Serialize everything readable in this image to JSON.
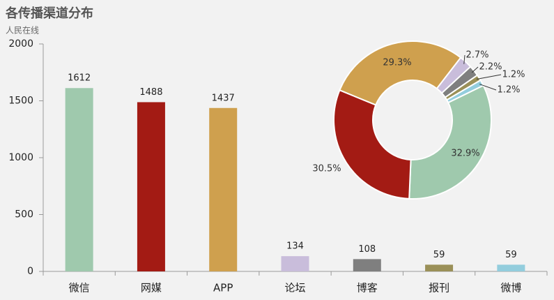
{
  "title": "各传播渠道分布",
  "subtitle": "人民在线",
  "chart_data": [
    {
      "type": "bar",
      "categories": [
        "微信",
        "网媒",
        "APP",
        "论坛",
        "博客",
        "报刊",
        "微博"
      ],
      "values": [
        1612,
        1488,
        1437,
        134,
        108,
        59,
        59
      ],
      "colors": [
        "#9fc9ad",
        "#a31b14",
        "#cfa04e",
        "#c9bddb",
        "#7f7f7f",
        "#9a9058",
        "#93cddd"
      ],
      "ylim": [
        0,
        2000
      ],
      "yticks": [
        0,
        500,
        1000,
        1500,
        2000
      ]
    },
    {
      "type": "pie",
      "values": [
        32.9,
        30.5,
        29.3,
        2.7,
        2.2,
        1.2,
        1.2
      ],
      "value_labels": [
        "32.9%",
        "30.5%",
        "29.3%",
        "2.7%",
        "2.2%",
        "1.2%",
        "1.2%"
      ],
      "colors": [
        "#9fc9ad",
        "#a31b14",
        "#cfa04e",
        "#c9bddb",
        "#7f7f7f",
        "#9a9058",
        "#93cddd"
      ]
    }
  ]
}
